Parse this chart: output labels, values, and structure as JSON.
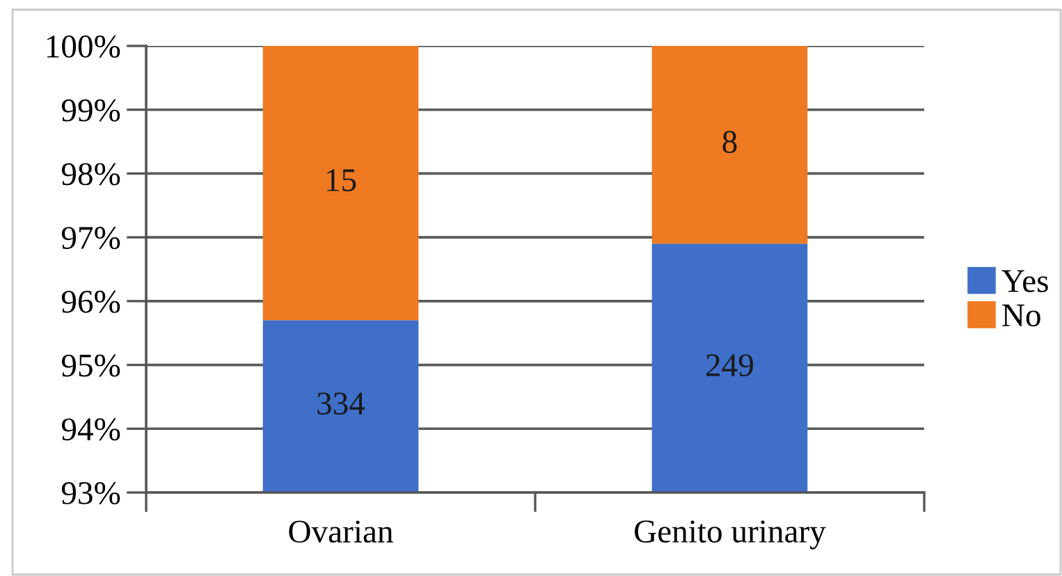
{
  "chart_data": {
    "type": "bar",
    "stacked": true,
    "categories": [
      "Ovarian",
      "Genito urinary"
    ],
    "series": [
      {
        "name": "Yes",
        "color": "#3f6fc8",
        "values": [
          95.7,
          96.9
        ]
      },
      {
        "name": "No",
        "color": "#f07a22",
        "values": [
          4.3,
          3.1
        ],
        "base": [
          95.7,
          96.9
        ]
      }
    ],
    "annotations": [
      "334",
      "15",
      "249",
      "8"
    ],
    "ylim": [
      93,
      100
    ],
    "yticks": [
      {
        "value": 93,
        "label": "93%"
      },
      {
        "value": 94,
        "label": "94%"
      },
      {
        "value": 95,
        "label": "95%"
      },
      {
        "value": 96,
        "label": "96%"
      },
      {
        "value": 97,
        "label": "97%"
      },
      {
        "value": 98,
        "label": "98%"
      },
      {
        "value": 99,
        "label": "99%"
      },
      {
        "value": 100,
        "label": "100%"
      }
    ],
    "grid": "y",
    "legend": "right"
  }
}
